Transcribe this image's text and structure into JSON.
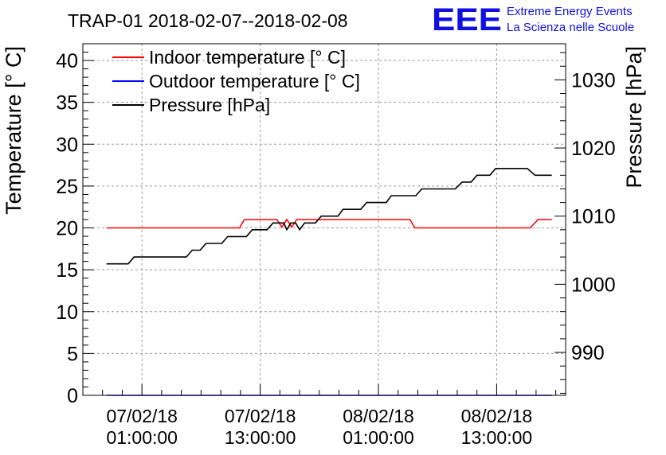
{
  "logo": {
    "letters": "EEE",
    "line1": "Extreme Energy Events",
    "line2": "La Scienza nelle Scuole",
    "color": "#1010e0"
  },
  "chart_data": {
    "type": "line",
    "title": "TRAP-01 2018-02-07--2018-02-08",
    "xlabel": "",
    "ylabel": "Temperature [° C]",
    "ylabel_right": "Pressure [hPa]",
    "xlim": [
      -6,
      43
    ],
    "ylim": [
      0,
      42
    ],
    "ylim_right": [
      983.7,
      1035.3
    ],
    "x_ticks": [
      {
        "x": 0,
        "line1": "07/02/18",
        "line2": "01:00:00"
      },
      {
        "x": 12,
        "line1": "07/02/18",
        "line2": "13:00:00"
      },
      {
        "x": 24,
        "line1": "08/02/18",
        "line2": "01:00:00"
      },
      {
        "x": 36,
        "line1": "08/02/18",
        "line2": "13:00:00"
      }
    ],
    "y_ticks": [
      0,
      5,
      10,
      15,
      20,
      25,
      30,
      35,
      40
    ],
    "y_ticks_right": [
      990,
      1000,
      1010,
      1020,
      1030
    ],
    "grid": true,
    "legend_position": "top-left",
    "series": [
      {
        "name": "Indoor temperature [° C]",
        "axis": "left",
        "color": "#ff0000",
        "points": [
          [
            -3.6,
            20
          ],
          [
            9.9,
            20
          ],
          [
            10.4,
            21
          ],
          [
            13.7,
            21
          ],
          [
            14.2,
            20.1
          ],
          [
            14.7,
            21
          ],
          [
            15.2,
            20.1
          ],
          [
            15.7,
            21
          ],
          [
            27.2,
            21
          ],
          [
            27.7,
            20
          ],
          [
            39.4,
            20
          ],
          [
            40.2,
            21
          ],
          [
            41.6,
            21
          ]
        ]
      },
      {
        "name": "Outdoor temperature [° C]",
        "axis": "left",
        "color": "#0000ff",
        "points": [
          [
            -3.6,
            0
          ],
          [
            41.6,
            0
          ]
        ]
      },
      {
        "name": "Pressure [hPa]",
        "axis": "right",
        "color": "#000000",
        "points": [
          [
            -3.6,
            1003
          ],
          [
            -1.4,
            1003
          ],
          [
            -0.8,
            1004
          ],
          [
            4.5,
            1004
          ],
          [
            5.1,
            1005
          ],
          [
            5.9,
            1005
          ],
          [
            6.5,
            1006
          ],
          [
            8.1,
            1006
          ],
          [
            8.7,
            1007
          ],
          [
            10.6,
            1007
          ],
          [
            11.2,
            1008
          ],
          [
            12.7,
            1008
          ],
          [
            13.3,
            1009
          ],
          [
            14.4,
            1009
          ],
          [
            14.7,
            1008
          ],
          [
            15.1,
            1009
          ],
          [
            15.6,
            1009
          ],
          [
            16.0,
            1008
          ],
          [
            16.5,
            1009
          ],
          [
            17.6,
            1009
          ],
          [
            18.2,
            1010
          ],
          [
            19.9,
            1010
          ],
          [
            20.4,
            1011
          ],
          [
            22.2,
            1011
          ],
          [
            22.8,
            1012
          ],
          [
            24.8,
            1012
          ],
          [
            25.3,
            1013
          ],
          [
            27.8,
            1013
          ],
          [
            28.4,
            1014
          ],
          [
            31.8,
            1014
          ],
          [
            32.5,
            1015
          ],
          [
            33.4,
            1015
          ],
          [
            34.0,
            1016
          ],
          [
            35.3,
            1016
          ],
          [
            35.9,
            1017
          ],
          [
            39.1,
            1017
          ],
          [
            39.9,
            1016
          ],
          [
            41.6,
            1016
          ]
        ]
      }
    ]
  }
}
